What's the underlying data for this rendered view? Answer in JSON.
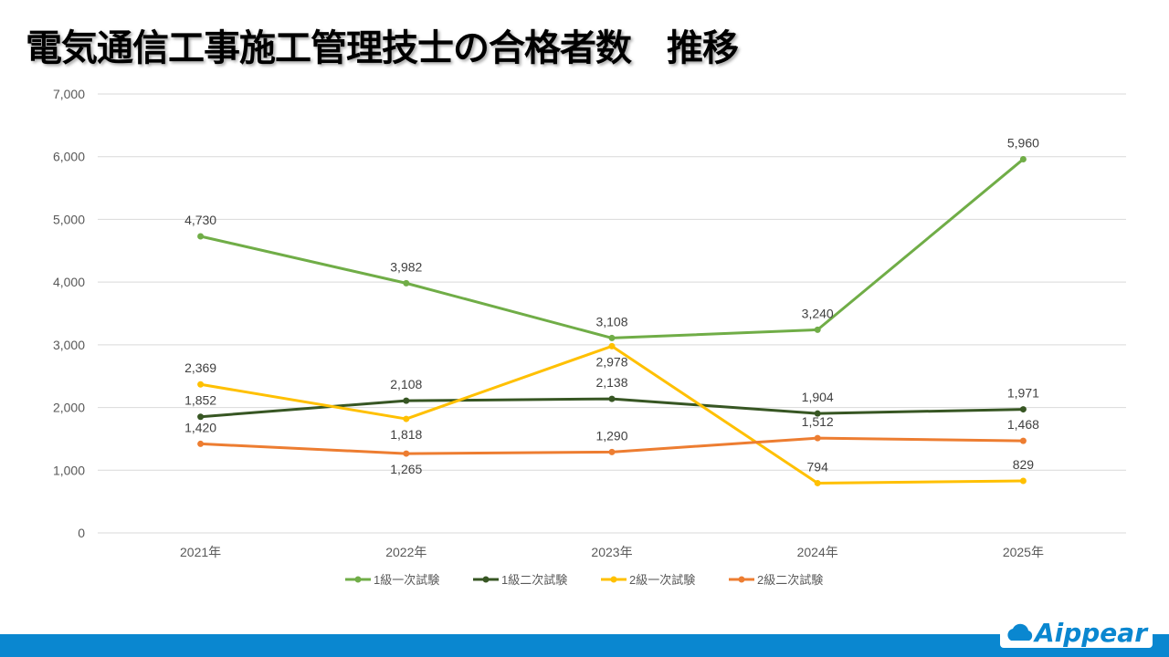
{
  "title": "電気通信工事施工管理技士の合格者数　推移",
  "logo_text": "Aippear",
  "chart_data": {
    "type": "line",
    "title": "電気通信工事施工管理技士の合格者数　推移",
    "categories": [
      "2021年",
      "2022年",
      "2023年",
      "2024年",
      "2025年"
    ],
    "ylim": [
      0,
      7000
    ],
    "yticks": [
      0,
      1000,
      2000,
      3000,
      4000,
      5000,
      6000,
      7000
    ],
    "ytick_labels": [
      "0",
      "1,000",
      "2,000",
      "3,000",
      "4,000",
      "5,000",
      "6,000",
      "7,000"
    ],
    "grid": true,
    "legend": "bottom",
    "series": [
      {
        "name": "1級一次試験",
        "color": "#70ad47",
        "values": [
          4730,
          3982,
          3108,
          3240,
          5960
        ]
      },
      {
        "name": "1級二次試験",
        "color": "#375623",
        "values": [
          1852,
          2108,
          2138,
          1904,
          1971
        ]
      },
      {
        "name": "2級一次試験",
        "color": "#ffc000",
        "values": [
          2369,
          1818,
          2978,
          794,
          829
        ]
      },
      {
        "name": "2級二次試験",
        "color": "#ed7d31",
        "values": [
          1420,
          1265,
          1290,
          1512,
          1468
        ]
      }
    ]
  }
}
